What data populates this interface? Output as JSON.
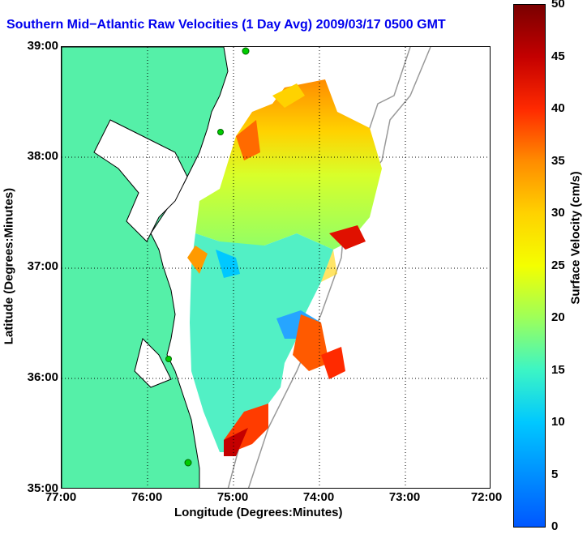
{
  "title": "Southern Mid−Atlantic Raw Velocities (1 Day Avg) 2009/03/17 0500 GMT",
  "axes": {
    "xlabel": "Longitude (Degrees:Minutes)",
    "ylabel": "Latitude (Degrees:Minutes)",
    "xticks": [
      "77:00",
      "76:00",
      "75:00",
      "74:00",
      "73:00",
      "72:00"
    ],
    "yticks": [
      "39:00",
      "38:00",
      "37:00",
      "36:00",
      "35:00"
    ],
    "xlim_deg_w": [
      77,
      72
    ],
    "ylim_deg_n": [
      35,
      39
    ],
    "grid": "dotted"
  },
  "colorbar": {
    "label": "Surface Velocity (cm/s)",
    "ticks": [
      "50",
      "45",
      "40",
      "35",
      "30",
      "25",
      "20",
      "15",
      "10",
      "5",
      "0"
    ],
    "range": [
      0,
      50
    ],
    "colormap": "jet"
  },
  "colors": {
    "land": "#55f0a8",
    "coast_line": "#000000",
    "bathymetry": "#999999",
    "station": "#00cc00",
    "title": "#0000ee"
  }
}
